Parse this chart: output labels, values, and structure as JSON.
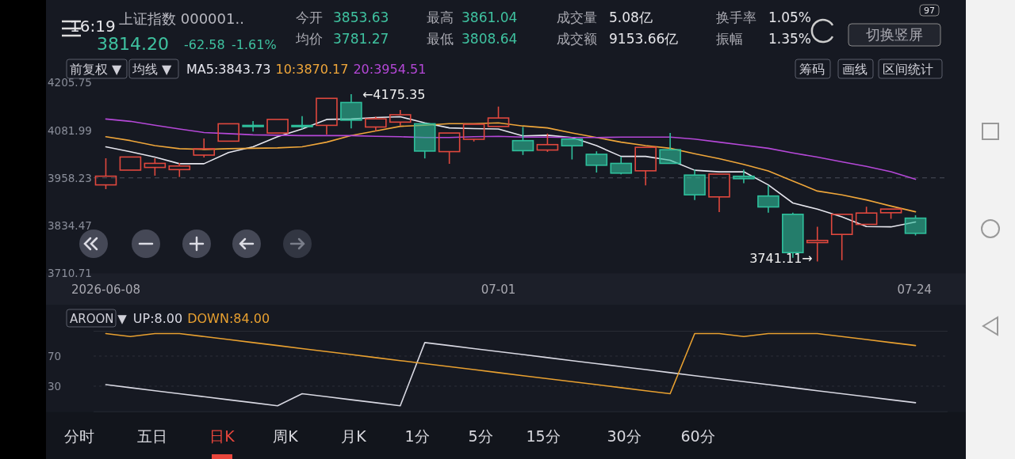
{
  "chart_data": [
    {
      "type": "other",
      "annotations": [
        "16:19",
        "上证指数 000001..",
        "3814.20",
        "-62.58",
        "-1.61%",
        "今开",
        "3853.63",
        "均价",
        "3781.27",
        "最高",
        "3861.04",
        "最低",
        "3808.64",
        "成交量",
        "5.08亿",
        "成交额",
        "9153.66亿",
        "换手率",
        "1.05%",
        "振幅",
        "1.35%",
        "97",
        "切换竖屏"
      ]
    },
    {
      "type": "candlestick",
      "categories": [
        "2026-06-08",
        null,
        null,
        null,
        null,
        null,
        null,
        null,
        null,
        null,
        null,
        null,
        null,
        null,
        null,
        null,
        "07-01",
        null,
        null,
        null,
        null,
        null,
        null,
        null,
        null,
        null,
        null,
        null,
        null,
        null,
        null,
        null,
        null,
        "07-24"
      ],
      "ohlc": [
        [
          3940.0,
          4009.1,
          3928.9,
          3962.6
        ],
        [
          3978.3,
          4012.4,
          3978.3,
          4012.4
        ],
        [
          3985.3,
          4009.1,
          3963.9,
          3995.9
        ],
        [
          3979.7,
          3996.8,
          3960.6,
          3989.0
        ],
        [
          4017.3,
          4060.5,
          4011.2,
          4033.8
        ],
        [
          4053.5,
          4098.7,
          4053.5,
          4098.7
        ],
        [
          4094.5,
          4105.7,
          4078.2,
          4093.8
        ],
        [
          4074.7,
          4110.0,
          4074.7,
          4110.0
        ],
        [
          4094.3,
          4118.6,
          4085.1,
          4093.8
        ],
        [
          4094.6,
          4164.7,
          4070.8,
          4164.7
        ],
        [
          4154.0,
          4175.35,
          4086.8,
          4108.0
        ],
        [
          4090.3,
          4117.2,
          4079.6,
          4111.4
        ],
        [
          4103.0,
          4134.5,
          4093.8,
          4122.1
        ],
        [
          4098.7,
          4100.0,
          4008.7,
          4027.8
        ],
        [
          4026.4,
          4074.7,
          3994.7,
          4074.7
        ],
        [
          4058.4,
          4097.5,
          4052.7,
          4097.5
        ],
        [
          4091.7,
          4143.3,
          4091.0,
          4113.7
        ],
        [
          4054.9,
          4090.5,
          4017.7,
          4028.8
        ],
        [
          4030.5,
          4073.2,
          4025.7,
          4044.6
        ],
        [
          4058.9,
          4059.5,
          4006.0,
          4041.6
        ],
        [
          4019.4,
          4027.2,
          3972.1,
          3991.0
        ],
        [
          3995.8,
          4013.2,
          3967.2,
          3970.5
        ],
        [
          3976.6,
          4037.5,
          3938.8,
          4037.5
        ],
        [
          4031.3,
          4074.7,
          3995.0,
          3995.8
        ],
        [
          3965.5,
          3979.9,
          3900.8,
          3914.2
        ],
        [
          3908.8,
          3968.0,
          3869.2,
          3968.0
        ],
        [
          3962.4,
          3979.9,
          3944.4,
          3956.1
        ],
        [
          3911.1,
          3938.8,
          3867.7,
          3882.7
        ],
        [
          3863.6,
          3867.7,
          3750.6,
          3764.1
        ],
        [
          3790.2,
          3831.3,
          3741.11,
          3795.8
        ],
        [
          3811.4,
          3864.0,
          3744.4,
          3863.6
        ],
        [
          3837.5,
          3883.3,
          3837.0,
          3866.9
        ],
        [
          3867.7,
          3877.5,
          3851.9,
          3877.2
        ],
        [
          3853.63,
          3861.04,
          3808.64,
          3814.2
        ]
      ],
      "colors": [
        "#e0483e",
        "#e0483e",
        "#e0483e",
        "#e0483e",
        "#e0483e",
        "#e0483e",
        "#2fbf9c",
        "#e0483e",
        "#2fbf9c",
        "#e0483e",
        "#2fbf9c",
        "#e0483e",
        "#e0483e",
        "#2fbf9c",
        "#e0483e",
        "#e0483e",
        "#e0483e",
        "#2fbf9c",
        "#e0483e",
        "#2fbf9c",
        "#2fbf9c",
        "#2fbf9c",
        "#e0483e",
        "#2fbf9c",
        "#2fbf9c",
        "#e0483e",
        "#2fbf9c",
        "#2fbf9c",
        "#2fbf9c",
        "#e0483e",
        "#e0483e",
        "#e0483e",
        "#e0483e",
        "#2fbf9c"
      ],
      "series": [
        {
          "name": "MA5:3843.73",
          "type": "line",
          "color": "#e6e6ee",
          "values": [
            4039,
            4026,
            4012,
            3995,
            3995,
            4024,
            4039,
            4065,
            4085,
            4110,
            4111,
            4115,
            4117,
            4101,
            4088,
            4086,
            4085,
            4067,
            4069,
            4063,
            4042,
            4014,
            4014,
            4004,
            3978,
            3974,
            3974,
            3940,
            3893,
            3877,
            3857,
            3832,
            3831,
            3843.73
          ]
        },
        {
          "name": "10:3870.17",
          "type": "line",
          "color": "#efa63a",
          "values": [
            4065,
            4055,
            4042,
            4034,
            4032,
            4034,
            4035,
            4036,
            4039,
            4051,
            4068,
            4080,
            4092,
            4095,
            4099,
            4099,
            4101,
            4093,
            4088,
            4075,
            4063,
            4051,
            4042,
            4035,
            4021,
            4008,
            3993,
            3976,
            3950,
            3924,
            3914,
            3901,
            3885,
            3870.17
          ]
        },
        {
          "name": "20:3954.51",
          "type": "line",
          "color": "#b548d8",
          "values": [
            4111,
            4105,
            4095,
            4085,
            4076,
            4073,
            4070,
            4069,
            4068,
            4068,
            4068,
            4066,
            4065,
            4063,
            4063,
            4065,
            4066,
            4064,
            4064,
            4063,
            4063,
            4064,
            4064,
            4064,
            4059,
            4051,
            4043,
            4035,
            4023,
            4012,
            4000,
            3988,
            3974,
            3954.51
          ]
        }
      ],
      "ylim": [
        3710.71,
        4205.75
      ],
      "yticks": [
        4205.75,
        4081.99,
        3958.23,
        3834.47,
        3710.71
      ],
      "ref_lines": [
        {
          "axis": "y",
          "value": 3958.23,
          "line_style": "dashed",
          "color": "#4a4e5a"
        }
      ],
      "annotations": [
        "前复权 ▼",
        "均线 ▼",
        "筹码",
        "画线",
        "区间统计",
        "←4175.35",
        "3741.11→"
      ]
    },
    {
      "type": "line",
      "categories": [
        null,
        null,
        null,
        null,
        null,
        null,
        null,
        null,
        null,
        null,
        null,
        null,
        null,
        null,
        null,
        null,
        null,
        null,
        null,
        null,
        null,
        null,
        null,
        null,
        null,
        null,
        null,
        null,
        null,
        null,
        null,
        null,
        null,
        null
      ],
      "series": [
        {
          "name": "UP:8.00",
          "color": "#d8d8e2",
          "values": [
            32,
            28,
            24,
            20,
            16,
            12,
            8,
            4,
            20,
            16,
            12,
            8,
            4,
            88,
            84,
            80,
            76,
            72,
            68,
            64,
            60,
            56,
            52,
            48,
            44,
            40,
            36,
            32,
            28,
            24,
            20,
            16,
            12,
            8
          ]
        },
        {
          "name": "DOWN:84.00",
          "color": "#e8a030",
          "values": [
            100,
            96,
            100,
            100,
            96,
            92,
            88,
            84,
            80,
            76,
            72,
            68,
            64,
            60,
            56,
            52,
            48,
            44,
            40,
            36,
            32,
            28,
            24,
            20,
            100,
            100,
            96,
            100,
            100,
            100,
            96,
            92,
            88,
            84
          ]
        }
      ],
      "ylim": [
        -4,
        103
      ],
      "yticks": [
        70,
        30
      ],
      "grid": "y",
      "tick_labels": "y",
      "annotations": [
        "AROON ▼"
      ]
    },
    {
      "type": "other",
      "annotations": [
        "分时",
        "五日",
        "日K",
        "周K",
        "月K",
        "1分",
        "5分",
        "15分",
        "30分",
        "60分"
      ]
    }
  ]
}
